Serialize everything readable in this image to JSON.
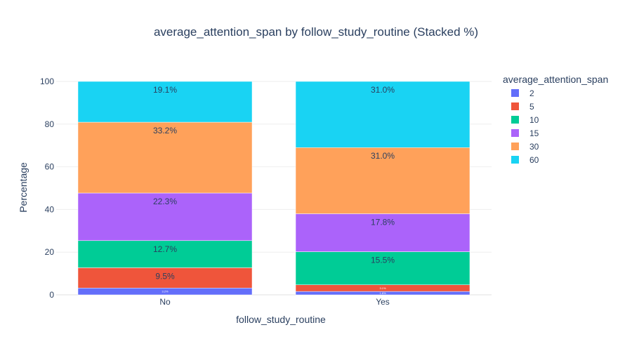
{
  "chart_data": {
    "type": "bar",
    "stacked": true,
    "title": "average_attention_span by follow_study_routine (Stacked %)",
    "xlabel": "follow_study_routine",
    "ylabel": "Percentage",
    "ylim": [
      0,
      100
    ],
    "yticks": [
      0,
      20,
      40,
      60,
      80,
      100
    ],
    "grid": true,
    "legend_title": "average_attention_span",
    "legend_position": "right",
    "categories": [
      "No",
      "Yes"
    ],
    "series": [
      {
        "name": "2",
        "color": "#636efa",
        "values": [
          3.2,
          1.6
        ],
        "labels": [
          "3.2%",
          "1.6%"
        ]
      },
      {
        "name": "5",
        "color": "#ef553b",
        "values": [
          9.5,
          3.1
        ],
        "labels": [
          "9.5%",
          "3.1%"
        ]
      },
      {
        "name": "10",
        "color": "#00cc96",
        "values": [
          12.7,
          15.5
        ],
        "labels": [
          "12.7%",
          "15.5%"
        ]
      },
      {
        "name": "15",
        "color": "#ab63fa",
        "values": [
          22.3,
          17.8
        ],
        "labels": [
          "22.3%",
          "17.8%"
        ]
      },
      {
        "name": "30",
        "color": "#ffa15a",
        "values": [
          33.2,
          31.0
        ],
        "labels": [
          "33.2%",
          "31.0%"
        ]
      },
      {
        "name": "60",
        "color": "#19d3f3",
        "values": [
          19.1,
          31.0
        ],
        "labels": [
          "19.1%",
          "31.0%"
        ]
      }
    ]
  }
}
